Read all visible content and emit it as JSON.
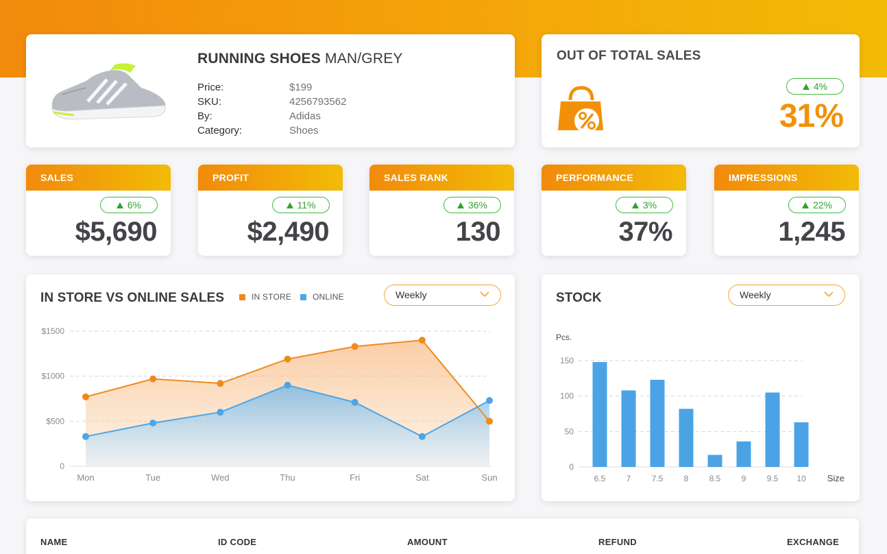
{
  "product": {
    "title_bold": "RUNNING SHOES",
    "title_rest": "MAN/GREY",
    "specs": [
      {
        "key": "Price:",
        "value": "$199"
      },
      {
        "key": "SKU:",
        "value": "4256793562"
      },
      {
        "key": "By:",
        "value": "Adidas"
      },
      {
        "key": "Category:",
        "value": "Shoes"
      }
    ]
  },
  "share": {
    "title": "OUT OF TOTAL SALES",
    "change": "4%",
    "value": "31%"
  },
  "metrics": [
    {
      "label": "SALES",
      "change": "6%",
      "value": "$5,690"
    },
    {
      "label": "PROFIT",
      "change": "11%",
      "value": "$2,490"
    },
    {
      "label": "SALES RANK",
      "change": "36%",
      "value": "130"
    },
    {
      "label": "PERFORMANCE",
      "change": "3%",
      "value": "37%"
    },
    {
      "label": "IMPRESSIONS",
      "change": "22%",
      "value": "1,245"
    }
  ],
  "sales_chart": {
    "title": "IN STORE VS ONLINE SALES",
    "legend": [
      {
        "label": "IN STORE",
        "color": "#ef8a1e"
      },
      {
        "label": "ONLINE",
        "color": "#4ea5e5"
      }
    ],
    "period": "Weekly"
  },
  "stock_chart": {
    "title": "STOCK",
    "period": "Weekly"
  },
  "table": {
    "headers": [
      "NAME",
      "ID CODE",
      "AMOUNT",
      "REFUND",
      "EXCHANGE"
    ]
  },
  "colors": {
    "accent": "#f29109",
    "online": "#4ea5e5",
    "in_store": "#ef8a1e",
    "positive": "#2ea52e"
  },
  "chart_data": [
    {
      "type": "line",
      "title": "IN STORE VS ONLINE SALES",
      "categories": [
        "Mon",
        "Tue",
        "Wed",
        "Thu",
        "Fri",
        "Sat",
        "Sun"
      ],
      "series": [
        {
          "name": "IN STORE",
          "values": [
            770,
            970,
            920,
            1190,
            1330,
            1400,
            500
          ]
        },
        {
          "name": "ONLINE",
          "values": [
            330,
            480,
            600,
            900,
            710,
            330,
            730
          ]
        }
      ],
      "yticks": [
        "$1500",
        "$1000",
        "$500",
        "0"
      ],
      "ylim": [
        0,
        1500
      ],
      "grid": true
    },
    {
      "type": "bar",
      "title": "STOCK",
      "ylabel": "Pcs.",
      "xlabel": "Size",
      "categories": [
        "6.5",
        "7",
        "7.5",
        "8",
        "8.5",
        "9",
        "9.5",
        "10"
      ],
      "values": [
        148,
        108,
        123,
        82,
        17,
        36,
        105,
        63
      ],
      "yticks": [
        "150",
        "100",
        "50",
        "0"
      ],
      "ylim": [
        0,
        150
      ],
      "grid": true
    }
  ]
}
